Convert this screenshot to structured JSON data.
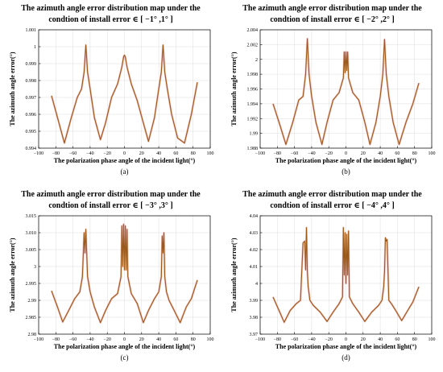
{
  "chart_data": [
    {
      "type": "line",
      "panel_label": "(a)",
      "title_line1": "The azimuth angle error distribution map under the",
      "title_line2": "condtion of install error ∈ [ −1° ,1° ]",
      "xlabel": "The polarization phase angle of the incident light(°)",
      "ylabel": "The azimuth angle error(°)",
      "xlim": [
        -100,
        100
      ],
      "xticks": [
        -100,
        -80,
        -60,
        -40,
        -20,
        0,
        20,
        40,
        60,
        80,
        100
      ],
      "xtick_labels": [
        "−100",
        "−80",
        "−60",
        "−40",
        "−20",
        "0",
        "20",
        "40",
        "60",
        "80",
        "100"
      ],
      "ylim": [
        0.994,
        1.001
      ],
      "yticks": [
        0.994,
        0.995,
        0.996,
        0.997,
        0.998,
        0.999,
        1,
        1.001
      ],
      "ytick_labels": [
        "0.994",
        "0.995",
        "0.996",
        "0.997",
        "0.998",
        "0.999",
        "1",
        "1.001"
      ],
      "grid": true,
      "series": [
        {
          "color": "#9a5a1c",
          "x": [
            -85,
            -78,
            -70,
            -62,
            -55,
            -50,
            -47,
            -45,
            -43,
            -40,
            -35,
            -28,
            -22,
            -15,
            -8,
            -3,
            -1,
            0,
            1,
            3,
            8,
            15,
            22,
            28,
            35,
            40,
            43,
            45,
            47,
            50,
            55,
            62,
            70,
            78,
            85
          ],
          "y": [
            0.9971,
            0.9958,
            0.9943,
            0.9958,
            0.997,
            0.9975,
            0.9985,
            1.0001,
            0.9985,
            0.9975,
            0.9958,
            0.9945,
            0.9955,
            0.997,
            0.9978,
            0.9988,
            0.9994,
            0.9995,
            0.9994,
            0.9988,
            0.9978,
            0.9968,
            0.9955,
            0.9944,
            0.9958,
            0.9975,
            0.9985,
            1.0001,
            0.9985,
            0.9975,
            0.996,
            0.9946,
            0.9943,
            0.996,
            0.9979
          ]
        }
      ]
    },
    {
      "type": "line",
      "panel_label": "(b)",
      "title_line1": "The azimuth angle error distribution map under the",
      "title_line2": "condtion of install error ∈ [ −2° ,2° ]",
      "xlabel": "The polarization phase angle of the incident light(°)",
      "ylabel": "The azimuth angle error(°)",
      "xlim": [
        -100,
        100
      ],
      "xticks": [
        -100,
        -80,
        -60,
        -40,
        -20,
        0,
        20,
        40,
        60,
        80,
        100
      ],
      "xtick_labels": [
        "−100",
        "−80",
        "−60",
        "−40",
        "−20",
        "0",
        "20",
        "40",
        "60",
        "80",
        "100"
      ],
      "ylim": [
        1.988,
        2.004
      ],
      "yticks": [
        1.988,
        1.99,
        1.992,
        1.994,
        1.996,
        1.998,
        2,
        2.002,
        2.004
      ],
      "ytick_labels": [
        "1.988",
        "1.99",
        "1.992",
        "1.994",
        "1.996",
        "1.998",
        "2",
        "2.002",
        "2.004"
      ],
      "grid": true,
      "series": [
        {
          "color": "#9a5a1c",
          "x": [
            -85,
            -78,
            -70,
            -62,
            -55,
            -50,
            -47,
            -45,
            -43,
            -40,
            -35,
            -28,
            -22,
            -15,
            -8,
            -3,
            -2,
            -1,
            0,
            1,
            2,
            3,
            8,
            15,
            22,
            28,
            35,
            40,
            43,
            45,
            47,
            50,
            55,
            62,
            70,
            78,
            85
          ],
          "y": [
            1.994,
            1.9915,
            1.9885,
            1.9915,
            1.9945,
            1.995,
            1.998,
            2.0028,
            1.998,
            1.995,
            1.9915,
            1.9885,
            1.9915,
            1.9945,
            1.9955,
            1.9975,
            2.001,
            1.9982,
            2.001,
            1.9985,
            2.001,
            1.9975,
            1.9955,
            1.9945,
            1.9915,
            1.9885,
            1.9915,
            1.995,
            1.998,
            2.0027,
            1.998,
            1.995,
            1.9915,
            1.9885,
            1.9915,
            1.994,
            1.9968
          ]
        }
      ]
    },
    {
      "type": "line",
      "panel_label": "(c)",
      "title_line1": "The azimuth angle error distribution map under the",
      "title_line2": "condtion of install error ∈ [ −3° ,3° ]",
      "xlabel": "The polarization phase angle of the incident light(°)",
      "ylabel": "The azimuth angle error(°)",
      "xlim": [
        -100,
        100
      ],
      "xticks": [
        -100,
        -80,
        -60,
        -40,
        -20,
        0,
        20,
        40,
        60,
        80,
        100
      ],
      "xtick_labels": [
        "−100",
        "−80",
        "−60",
        "−40",
        "−20",
        "0",
        "20",
        "40",
        "60",
        "80",
        "100"
      ],
      "ylim": [
        2.98,
        3.015
      ],
      "yticks": [
        2.98,
        2.985,
        2.99,
        2.995,
        3,
        3.005,
        3.01,
        3.015
      ],
      "ytick_labels": [
        "2.98",
        "2.985",
        "2.99",
        "2.995",
        "3",
        "3.005",
        "3.010",
        "3.015"
      ],
      "grid": true,
      "series": [
        {
          "color": "#9a5a1c",
          "x": [
            -85,
            -78,
            -72,
            -65,
            -58,
            -52,
            -49,
            -47,
            -46,
            -45,
            -44,
            -43,
            -40,
            -35,
            -28,
            -22,
            -15,
            -8,
            -4,
            -3,
            -2,
            -1,
            0,
            1,
            2,
            3,
            4,
            8,
            15,
            22,
            28,
            35,
            40,
            43,
            44,
            45,
            46,
            47,
            49,
            52,
            58,
            65,
            72,
            78,
            85
          ],
          "y": [
            2.9928,
            2.988,
            2.9836,
            2.987,
            2.9905,
            2.9925,
            2.997,
            3.01,
            3.004,
            3.011,
            3.004,
            2.997,
            2.9925,
            2.988,
            2.9834,
            2.987,
            2.9905,
            2.992,
            2.997,
            3.012,
            3.0,
            3.0125,
            2.999,
            3.012,
            2.999,
            3.011,
            2.997,
            2.992,
            2.989,
            2.9834,
            2.987,
            2.9905,
            2.9925,
            2.997,
            3.009,
            3.004,
            3.01,
            2.997,
            2.9925,
            2.99,
            2.987,
            2.9834,
            2.988,
            2.9905,
            2.996
          ]
        }
      ]
    },
    {
      "type": "line",
      "panel_label": "(d)",
      "title_line1": "The azimuth angle error distribution map under the",
      "title_line2": "condtion of install error ∈ [ −4° ,4° ]",
      "xlabel": "The polarization phase angle of the incident light(°)",
      "ylabel": "The azimuth angle error(°)",
      "xlim": [
        -100,
        100
      ],
      "xticks": [
        -100,
        -80,
        -60,
        -40,
        -20,
        0,
        20,
        40,
        60,
        80,
        100
      ],
      "xtick_labels": [
        "−100",
        "−80",
        "−60",
        "−40",
        "−20",
        "0",
        "20",
        "40",
        "60",
        "80",
        "100"
      ],
      "ylim": [
        3.97,
        4.04
      ],
      "yticks": [
        3.97,
        3.98,
        3.99,
        4,
        4.01,
        4.02,
        4.03,
        4.04
      ],
      "ytick_labels": [
        "3.97",
        "3.98",
        "3.99",
        "4",
        "4.01",
        "4.02",
        "4.03",
        "4.04"
      ],
      "grid": true,
      "series": [
        {
          "color": "#9a5a1c",
          "x": [
            -85,
            -78,
            -72,
            -65,
            -58,
            -53,
            -50,
            -48,
            -47,
            -46,
            -45,
            -44,
            -42,
            -38,
            -30,
            -22,
            -15,
            -8,
            -4,
            -3,
            -2,
            -1,
            0,
            1,
            2,
            3,
            4,
            8,
            15,
            22,
            30,
            38,
            42,
            44,
            45,
            46,
            47,
            48,
            50,
            53,
            58,
            65,
            72,
            78,
            85
          ],
          "y": [
            3.992,
            3.984,
            3.977,
            3.984,
            3.988,
            3.99,
            4.024,
            4.025,
            4.008,
            4.033,
            4.007,
            3.998,
            3.99,
            3.987,
            3.983,
            3.9775,
            3.983,
            3.988,
            3.992,
            4.033,
            4.005,
            4.03,
            4.0,
            4.029,
            4.005,
            4.031,
            3.992,
            3.988,
            3.983,
            3.9775,
            3.983,
            3.987,
            3.99,
            3.998,
            4.007,
            4.027,
            4.025,
            4.026,
            3.99,
            3.988,
            3.984,
            3.978,
            3.984,
            3.989,
            3.998
          ]
        }
      ]
    }
  ]
}
